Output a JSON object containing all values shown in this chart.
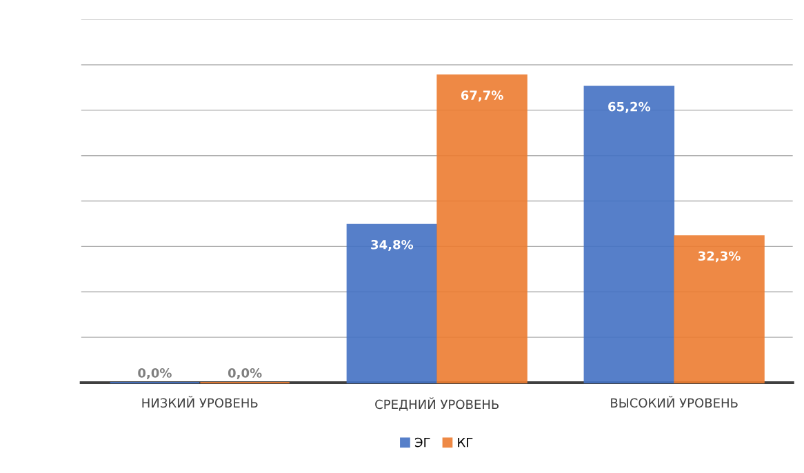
{
  "chart_data": {
    "type": "bar",
    "categories": [
      "НИЗКИЙ УРОВЕНЬ",
      "СРЕДНИЙ УРОВЕНЬ",
      "ВЫСОКИЙ УРОВЕНЬ"
    ],
    "series": [
      {
        "name": "ЭГ",
        "color": "#4472c4",
        "values": [
          0.0,
          34.8,
          65.2
        ],
        "value_labels": [
          "0,0%",
          "34,8%",
          "65,2%"
        ]
      },
      {
        "name": "КГ",
        "color": "#ed7d31",
        "values": [
          0.0,
          67.7,
          32.3
        ],
        "value_labels": [
          "0,0%",
          "67,7%",
          "32,3%"
        ]
      }
    ],
    "ylim": [
      0,
      80
    ],
    "yticks": [
      {
        "value": 0,
        "label": null
      },
      {
        "value": 10,
        "label": null
      },
      {
        "value": 20,
        "label": null
      },
      {
        "value": 30,
        "label": null
      },
      {
        "value": 40,
        "label": null
      },
      {
        "value": 50,
        "label": null
      },
      {
        "value": 60,
        "label": null
      },
      {
        "value": 70,
        "label": null
      },
      {
        "value": 80,
        "label": null
      }
    ],
    "grid": "y",
    "legend": "bottom"
  }
}
